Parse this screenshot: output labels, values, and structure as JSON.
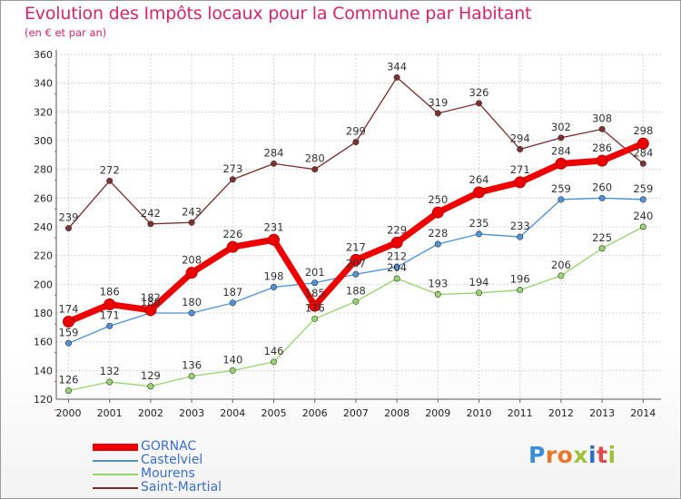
{
  "title": "Evolution des Impôts locaux pour la Commune par Habitant",
  "subtitle": "(en € et par an)",
  "logo": {
    "text": "Proxiti",
    "letters": [
      {
        "char": "P",
        "color": "#3a8fd8"
      },
      {
        "char": "r",
        "color": "#e8792b"
      },
      {
        "char": "o",
        "color": "#e8792b"
      },
      {
        "char": "x",
        "color": "#9dc23a"
      },
      {
        "char": "i",
        "color": "#2f6fbf"
      },
      {
        "char": "t",
        "color": "#e04a4a"
      },
      {
        "char": "i",
        "color": "#9dc23a"
      }
    ]
  },
  "chart_data": {
    "type": "line",
    "title": "Evolution des Impôts locaux pour la Commune par Habitant",
    "subtitle": "(en € et par an)",
    "xlabel": "",
    "ylabel": "",
    "categories": [
      "2000",
      "2001",
      "2002",
      "2003",
      "2004",
      "2005",
      "2006",
      "2007",
      "2008",
      "2009",
      "2010",
      "2011",
      "2012",
      "2013",
      "2014"
    ],
    "ylim": [
      120,
      360
    ],
    "yticks": [
      120,
      140,
      160,
      180,
      200,
      220,
      240,
      260,
      280,
      300,
      320,
      340,
      360
    ],
    "grid": true,
    "legend_position": "bottom-left",
    "series": [
      {
        "name": "Saint-Martial",
        "color": "#7b2a2a",
        "values": [
          239,
          272,
          242,
          243,
          273,
          284,
          280,
          299,
          344,
          319,
          326,
          294,
          302,
          308,
          284
        ]
      },
      {
        "name": "Mourens",
        "color": "#96d46a",
        "values": [
          126,
          132,
          129,
          136,
          140,
          146,
          176,
          188,
          204,
          193,
          194,
          196,
          206,
          225,
          240
        ]
      },
      {
        "name": "Castelviel",
        "color": "#4a90d9",
        "values": [
          159,
          171,
          180,
          180,
          187,
          198,
          201,
          207,
          212,
          228,
          235,
          233,
          259,
          260,
          259
        ]
      },
      {
        "name": "GORNAC",
        "color": "#ee0000",
        "values": [
          174,
          186,
          182,
          208,
          226,
          231,
          185,
          217,
          229,
          250,
          264,
          271,
          284,
          286,
          298
        ]
      }
    ],
    "data_labels": {
      "Saint-Martial": [
        "239",
        "272",
        "242",
        "243",
        "273",
        "284",
        "280",
        "299",
        "344",
        "319",
        "326",
        "294",
        "302",
        "308",
        "284"
      ],
      "Mourens": [
        "126",
        "132",
        "129",
        "136",
        "140",
        "146",
        "176",
        "188",
        "204",
        "193",
        "194",
        "196",
        "206",
        "225",
        "240"
      ],
      "Castelviel": [
        "159",
        "171",
        "180",
        "180",
        "187",
        "198",
        "201",
        "207",
        "212",
        "228",
        "235",
        "233",
        "259",
        "260",
        "259"
      ],
      "GORNAC": [
        "174",
        "186",
        "182",
        "208",
        "226",
        "231",
        "185",
        "217",
        "229",
        "250",
        "264",
        "271",
        "284",
        "286",
        "298"
      ]
    }
  },
  "legend": [
    {
      "label": "GORNAC",
      "color": "#ee0000",
      "thick": true
    },
    {
      "label": "Castelviel",
      "color": "#4a90d9",
      "thick": false
    },
    {
      "label": "Mourens",
      "color": "#96d46a",
      "thick": false
    },
    {
      "label": "Saint-Martial",
      "color": "#7b2a2a",
      "thick": false
    }
  ]
}
